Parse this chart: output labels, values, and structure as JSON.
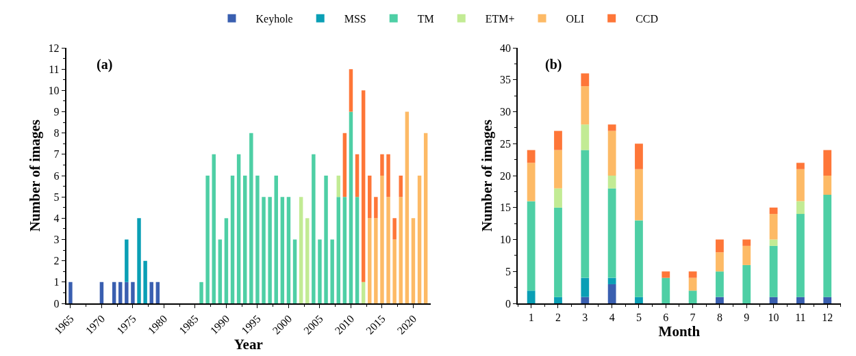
{
  "chart_data": [
    {
      "type": "bar",
      "stacked": true,
      "xlabel": "Year",
      "ylabel": "Number of images",
      "annotations": [
        "(a)"
      ],
      "legend": "top",
      "grid": false,
      "xlim": [
        1964.3,
        2022.8
      ],
      "xticks": [
        1965,
        1970,
        1975,
        1980,
        1985,
        1990,
        1995,
        2000,
        2005,
        2010,
        2015,
        2020
      ],
      "ylim": [
        0,
        12
      ],
      "yticks": [
        0,
        1,
        2,
        3,
        4,
        5,
        6,
        7,
        8,
        9,
        10,
        11,
        12
      ],
      "x": [
        1965,
        1966,
        1967,
        1968,
        1969,
        1970,
        1971,
        1972,
        1973,
        1974,
        1975,
        1976,
        1977,
        1978,
        1979,
        1980,
        1981,
        1982,
        1983,
        1984,
        1985,
        1986,
        1987,
        1988,
        1989,
        1990,
        1991,
        1992,
        1993,
        1994,
        1995,
        1996,
        1997,
        1998,
        1999,
        2000,
        2001,
        2002,
        2003,
        2004,
        2005,
        2006,
        2007,
        2008,
        2009,
        2010,
        2011,
        2012,
        2013,
        2014,
        2015,
        2016,
        2017,
        2018,
        2019,
        2020,
        2021,
        2022
      ],
      "series": [
        {
          "name": "Keyhole",
          "color": "#3a5fb0",
          "values": [
            1,
            0,
            0,
            0,
            0,
            1,
            0,
            1,
            1,
            1,
            1,
            0,
            0,
            1,
            1,
            0,
            0,
            0,
            0,
            0,
            0,
            0,
            0,
            0,
            0,
            0,
            0,
            0,
            0,
            0,
            0,
            0,
            0,
            0,
            0,
            0,
            0,
            0,
            0,
            0,
            0,
            0,
            0,
            0,
            0,
            0,
            0,
            0,
            0,
            0,
            0,
            0,
            0,
            0,
            0,
            0,
            0,
            0
          ]
        },
        {
          "name": "MSS",
          "color": "#0a9fb5",
          "values": [
            0,
            0,
            0,
            0,
            0,
            0,
            0,
            0,
            0,
            2,
            0,
            4,
            2,
            0,
            0,
            0,
            0,
            0,
            0,
            0,
            0,
            0,
            0,
            0,
            0,
            0,
            0,
            0,
            0,
            0,
            0,
            0,
            0,
            0,
            0,
            0,
            0,
            0,
            0,
            0,
            0,
            0,
            0,
            0,
            0,
            0,
            0,
            0,
            0,
            0,
            0,
            0,
            0,
            0,
            0,
            0,
            0,
            0
          ]
        },
        {
          "name": "TM",
          "color": "#4ecfa5",
          "values": [
            0,
            0,
            0,
            0,
            0,
            0,
            0,
            0,
            0,
            0,
            0,
            0,
            0,
            0,
            0,
            0,
            0,
            0,
            0,
            0,
            0,
            1,
            6,
            7,
            3,
            4,
            6,
            7,
            6,
            8,
            6,
            5,
            5,
            6,
            5,
            5,
            3,
            0,
            0,
            7,
            3,
            6,
            3,
            5,
            5,
            9,
            5,
            0,
            0,
            0,
            0,
            0,
            0,
            0,
            0,
            0,
            0,
            0
          ]
        },
        {
          "name": "ETM+",
          "color": "#c2eb94",
          "values": [
            0,
            0,
            0,
            0,
            0,
            0,
            0,
            0,
            0,
            0,
            0,
            0,
            0,
            0,
            0,
            0,
            0,
            0,
            0,
            0,
            0,
            0,
            0,
            0,
            0,
            0,
            0,
            0,
            0,
            0,
            0,
            0,
            0,
            0,
            0,
            0,
            0,
            5,
            4,
            0,
            0,
            0,
            0,
            1,
            0,
            0,
            0,
            1,
            0,
            0,
            0,
            0,
            0,
            0,
            0,
            0,
            0,
            0
          ]
        },
        {
          "name": "OLI",
          "color": "#fdba66",
          "values": [
            0,
            0,
            0,
            0,
            0,
            0,
            0,
            0,
            0,
            0,
            0,
            0,
            0,
            0,
            0,
            0,
            0,
            0,
            0,
            0,
            0,
            0,
            0,
            0,
            0,
            0,
            0,
            0,
            0,
            0,
            0,
            0,
            0,
            0,
            0,
            0,
            0,
            0,
            0,
            0,
            0,
            0,
            0,
            0,
            0,
            0,
            0,
            0,
            4,
            4,
            6,
            5,
            3,
            5,
            9,
            4,
            6,
            8
          ]
        },
        {
          "name": "CCD",
          "color": "#fe7638",
          "values": [
            0,
            0,
            0,
            0,
            0,
            0,
            0,
            0,
            0,
            0,
            0,
            0,
            0,
            0,
            0,
            0,
            0,
            0,
            0,
            0,
            0,
            0,
            0,
            0,
            0,
            0,
            0,
            0,
            0,
            0,
            0,
            0,
            0,
            0,
            0,
            0,
            0,
            0,
            0,
            0,
            0,
            0,
            0,
            0,
            3,
            2,
            2,
            9,
            2,
            1,
            1,
            2,
            1,
            1,
            0,
            0,
            0,
            0
          ]
        }
      ]
    },
    {
      "type": "bar",
      "stacked": true,
      "xlabel": "Month",
      "ylabel": "Number of images",
      "annotations": [
        "(b)"
      ],
      "grid": false,
      "categories": [
        "1",
        "2",
        "3",
        "4",
        "5",
        "6",
        "7",
        "8",
        "9",
        "10",
        "11",
        "12"
      ],
      "ylim": [
        0,
        40
      ],
      "yticks": [
        0,
        5,
        10,
        15,
        20,
        25,
        30,
        35,
        40
      ],
      "series": [
        {
          "color": "#3a5fb0",
          "values": [
            0,
            0,
            1,
            3,
            0,
            0,
            0,
            1,
            0,
            1,
            1,
            1
          ]
        },
        {
          "color": "#0a9fb5",
          "values": [
            2,
            1,
            3,
            1,
            1,
            0,
            0,
            0,
            0,
            0,
            0,
            0
          ]
        },
        {
          "color": "#4ecfa5",
          "values": [
            14,
            14,
            20,
            14,
            12,
            4,
            2,
            4,
            6,
            8,
            13,
            16
          ]
        },
        {
          "color": "#c2eb94",
          "values": [
            0,
            3,
            4,
            2,
            0,
            0,
            0,
            0,
            0,
            1,
            2,
            0
          ]
        },
        {
          "color": "#fdba66",
          "values": [
            6,
            6,
            6,
            7,
            8,
            0,
            2,
            3,
            3,
            4,
            5,
            3
          ]
        },
        {
          "color": "#fe7638",
          "values": [
            2,
            3,
            2,
            1,
            4,
            1,
            1,
            2,
            1,
            1,
            1,
            4
          ]
        }
      ]
    }
  ]
}
